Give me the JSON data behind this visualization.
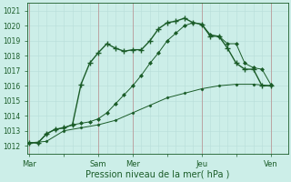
{
  "bg_color": "#cceee8",
  "grid_color_minor": "#b8ddd8",
  "grid_color_major": "#99ccbb",
  "line_color_dark": "#1a5c28",
  "line_color_mid": "#2d7a3a",
  "xlabel": "Pression niveau de la mer( hPa )",
  "ylim": [
    1011.5,
    1021.5
  ],
  "yticks": [
    1012,
    1013,
    1014,
    1015,
    1016,
    1017,
    1018,
    1019,
    1020,
    1021
  ],
  "xtick_labels": [
    "Mar",
    "",
    "Sam",
    "Mer",
    "",
    "Jeu",
    "",
    "Ven"
  ],
  "xtick_positions": [
    0,
    2,
    4,
    6,
    8,
    10,
    12,
    14
  ],
  "day_vline_positions": [
    0,
    4,
    6,
    10,
    14
  ],
  "xlim": [
    -0.1,
    15.0
  ],
  "line1_x": [
    0,
    0.5,
    1.0,
    1.5,
    2.0,
    2.5,
    3.0,
    3.5,
    4.0,
    4.5,
    5.0,
    5.5,
    6.0,
    6.5,
    7.0,
    7.5,
    8.0,
    8.5,
    9.0,
    9.5,
    10.0,
    10.5,
    11.0,
    11.5,
    12.0,
    12.5,
    13.0,
    13.5,
    14.0
  ],
  "line1_y": [
    1012.2,
    1012.2,
    1012.8,
    1013.1,
    1013.2,
    1013.4,
    1016.1,
    1017.5,
    1018.2,
    1018.8,
    1018.5,
    1018.3,
    1018.4,
    1018.4,
    1019.0,
    1019.8,
    1020.2,
    1020.3,
    1020.5,
    1020.2,
    1020.1,
    1019.3,
    1019.3,
    1018.5,
    1017.5,
    1017.1,
    1017.1,
    1016.0,
    1016.0
  ],
  "line2_x": [
    0,
    0.5,
    1.0,
    1.5,
    2.0,
    2.5,
    3.0,
    3.5,
    4.0,
    4.5,
    5.0,
    5.5,
    6.0,
    6.5,
    7.0,
    7.5,
    8.0,
    8.5,
    9.0,
    9.5,
    10.0,
    10.5,
    11.0,
    11.5,
    12.0,
    12.5,
    13.0,
    13.5,
    14.0
  ],
  "line2_y": [
    1012.2,
    1012.2,
    1012.8,
    1013.1,
    1013.2,
    1013.4,
    1013.5,
    1013.6,
    1013.8,
    1014.2,
    1014.8,
    1015.4,
    1016.0,
    1016.7,
    1017.5,
    1018.2,
    1019.0,
    1019.5,
    1020.0,
    1020.2,
    1020.1,
    1019.4,
    1019.3,
    1018.8,
    1018.8,
    1017.5,
    1017.2,
    1017.1,
    1016.1
  ],
  "line3_x": [
    0,
    1,
    2,
    3,
    4,
    5,
    6,
    7,
    8,
    9,
    10,
    11,
    12,
    13,
    14
  ],
  "line3_y": [
    1012.2,
    1012.3,
    1013.0,
    1013.2,
    1013.4,
    1013.7,
    1014.2,
    1014.7,
    1015.2,
    1015.5,
    1015.8,
    1016.0,
    1016.1,
    1016.1,
    1016.0
  ]
}
